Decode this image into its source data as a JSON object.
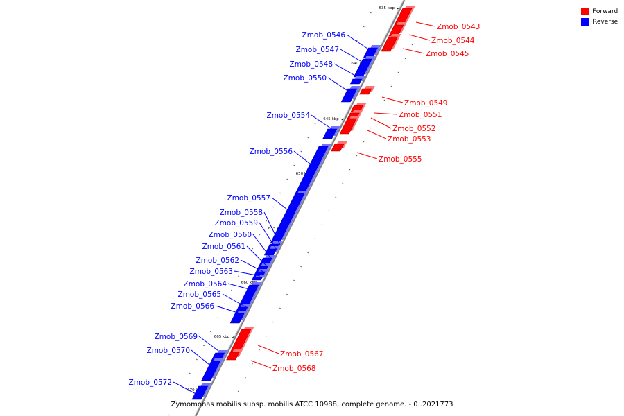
{
  "diagram": {
    "caption": "Zymomonas mobilis subsp. mobilis ATCC 10988, complete genome. - 0..2021773",
    "legend": [
      {
        "label": "Forward",
        "color": "#ff0000"
      },
      {
        "label": "Reverse",
        "color": "#0000ff"
      }
    ],
    "colors": {
      "forward": "#ff0000",
      "reverse": "#0000ff",
      "backbone": "#808080"
    },
    "ticks": [
      {
        "label": "635 kbp",
        "kbp": 635
      },
      {
        "label": "640 kbp",
        "kbp": 640
      },
      {
        "label": "645 kbp",
        "kbp": 645
      },
      {
        "label": "650 kbp",
        "kbp": 650
      },
      {
        "label": "655 kbp",
        "kbp": 655
      },
      {
        "label": "660 kbp",
        "kbp": 660
      },
      {
        "label": "665 kbp",
        "kbp": 665
      },
      {
        "label": "670 kbp",
        "kbp": 670
      }
    ],
    "genes": [
      {
        "name": "Zmob_0543",
        "strand": "forward"
      },
      {
        "name": "Zmob_0544",
        "strand": "forward"
      },
      {
        "name": "Zmob_0545",
        "strand": "forward"
      },
      {
        "name": "Zmob_0546",
        "strand": "reverse"
      },
      {
        "name": "Zmob_0547",
        "strand": "reverse"
      },
      {
        "name": "Zmob_0548",
        "strand": "reverse"
      },
      {
        "name": "Zmob_0550",
        "strand": "reverse"
      },
      {
        "name": "Zmob_0549",
        "strand": "forward"
      },
      {
        "name": "Zmob_0551",
        "strand": "forward"
      },
      {
        "name": "Zmob_0552",
        "strand": "forward"
      },
      {
        "name": "Zmob_0553",
        "strand": "forward"
      },
      {
        "name": "Zmob_0554",
        "strand": "reverse"
      },
      {
        "name": "Zmob_0555",
        "strand": "forward"
      },
      {
        "name": "Zmob_0556",
        "strand": "reverse"
      },
      {
        "name": "Zmob_0557",
        "strand": "reverse"
      },
      {
        "name": "Zmob_0558",
        "strand": "reverse"
      },
      {
        "name": "Zmob_0559",
        "strand": "reverse"
      },
      {
        "name": "Zmob_0560",
        "strand": "reverse"
      },
      {
        "name": "Zmob_0561",
        "strand": "reverse"
      },
      {
        "name": "Zmob_0562",
        "strand": "reverse"
      },
      {
        "name": "Zmob_0563",
        "strand": "reverse"
      },
      {
        "name": "Zmob_0564",
        "strand": "reverse"
      },
      {
        "name": "Zmob_0565",
        "strand": "reverse"
      },
      {
        "name": "Zmob_0566",
        "strand": "reverse"
      },
      {
        "name": "Zmob_0567",
        "strand": "forward"
      },
      {
        "name": "Zmob_0568",
        "strand": "forward"
      },
      {
        "name": "Zmob_0569",
        "strand": "reverse"
      },
      {
        "name": "Zmob_0570",
        "strand": "reverse"
      },
      {
        "name": "Zmob_0572",
        "strand": "reverse"
      }
    ]
  }
}
